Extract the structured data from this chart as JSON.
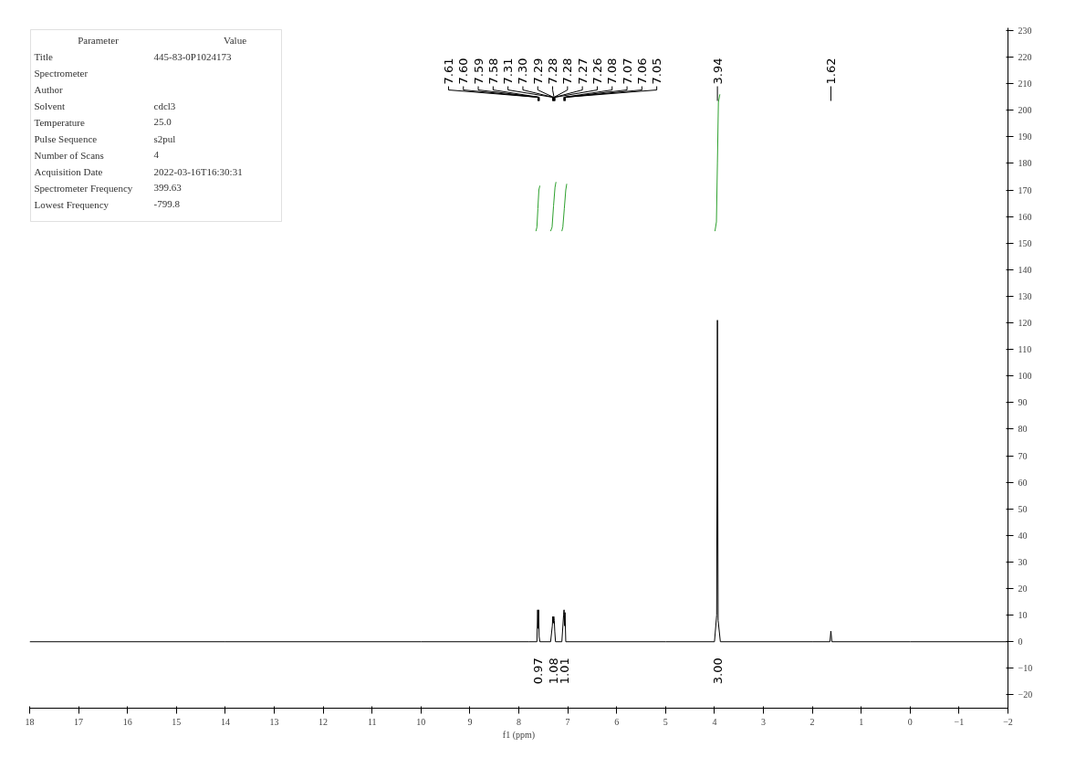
{
  "chart_data": {
    "type": "line",
    "xlabel": "f1 (ppm)",
    "xlim": [
      18,
      -2
    ],
    "xticks": [
      18,
      17,
      16,
      15,
      14,
      13,
      12,
      11,
      10,
      9,
      8,
      7,
      6,
      5,
      4,
      3,
      2,
      1,
      0,
      {
        "value": -1,
        "label": "−1"
      },
      {
        "value": -2,
        "label": "−2"
      }
    ],
    "ylim": [
      -25,
      231
    ],
    "yticks": [
      {
        "value": -20,
        "label": "−20"
      },
      {
        "value": -10,
        "label": "−10"
      },
      0,
      10,
      20,
      30,
      40,
      50,
      60,
      70,
      80,
      90,
      100,
      110,
      120,
      130,
      140,
      150,
      160,
      170,
      180,
      190,
      200,
      210,
      220,
      230
    ],
    "tick_labels": "xy",
    "grid": false,
    "series": [
      {
        "color": "#000000",
        "x": [
          18,
          14,
          10,
          7.8,
          7.63,
          7.615,
          7.605,
          7.595,
          7.585,
          7.57,
          7.35,
          7.315,
          7.305,
          7.295,
          7.285,
          7.275,
          7.265,
          7.25,
          7.12,
          7.085,
          7.075,
          7.065,
          7.055,
          7.04,
          5,
          4.0,
          3.955,
          3.94,
          3.925,
          3.88,
          2,
          1.64,
          1.62,
          1.6,
          0,
          -2
        ],
        "values": [
          0,
          0,
          0,
          0,
          0,
          12,
          5,
          12,
          2,
          0,
          0,
          6,
          9.5,
          7,
          9.5,
          8,
          4,
          0,
          0,
          10,
          12,
          6,
          11,
          0,
          0,
          0,
          10,
          121,
          8,
          0,
          0,
          0,
          4,
          0,
          0,
          0
        ]
      },
      {
        "color": "#2ca02c",
        "x": [
          7.65,
          7.63,
          7.61,
          7.59,
          7.57
        ],
        "values": [
          154.5,
          156,
          163,
          170,
          171.6
        ]
      },
      {
        "color": "#2ca02c",
        "x": [
          7.35,
          7.32,
          7.29,
          7.26,
          7.24
        ],
        "values": [
          154.5,
          156,
          164,
          171,
          173
        ]
      },
      {
        "color": "#2ca02c",
        "x": [
          7.12,
          7.1,
          7.07,
          7.04,
          7.02
        ],
        "values": [
          154.5,
          156,
          163,
          170,
          172.3
        ]
      },
      {
        "color": "#2ca02c",
        "x": [
          3.99,
          3.96,
          3.94,
          3.92,
          3.89
        ],
        "values": [
          154.5,
          158,
          180,
          203,
          206
        ]
      }
    ],
    "annotations": [
      "Parameter\tValue",
      "Title\t445-83-0P1024173",
      "Spectrometer",
      "Author",
      "Solvent\tcdcl3",
      "Temperature\t25.0",
      "Pulse Sequence\ts2pul",
      "Number of Scans\t4",
      "Acquisition Date\t2022-03-16T16:30:31",
      "Spectrometer Frequency\t399.63",
      "Lowest Frequency\t-799.8",
      {
        "text": "7.61",
        "x": 7.61
      },
      {
        "text": "7.60",
        "x": 7.6
      },
      {
        "text": "7.59",
        "x": 7.59
      },
      {
        "text": "7.58",
        "x": 7.58
      },
      {
        "text": "7.31",
        "x": 7.31
      },
      {
        "text": "7.30",
        "x": 7.3
      },
      {
        "text": "7.29",
        "x": 7.29
      },
      {
        "text": "7.28",
        "x": 7.28
      },
      {
        "text": "7.28",
        "x": 7.28
      },
      {
        "text": "7.27",
        "x": 7.27
      },
      {
        "text": "7.26",
        "x": 7.26
      },
      {
        "text": "7.08",
        "x": 7.08
      },
      {
        "text": "7.07",
        "x": 7.07
      },
      {
        "text": "7.06",
        "x": 7.06
      },
      {
        "text": "7.05",
        "x": 7.05
      },
      {
        "text": "3.94",
        "x": 3.94
      },
      {
        "text": "1.62",
        "x": 1.62
      },
      "0.97",
      "1.08",
      "1.01",
      "3.00"
    ]
  }
}
